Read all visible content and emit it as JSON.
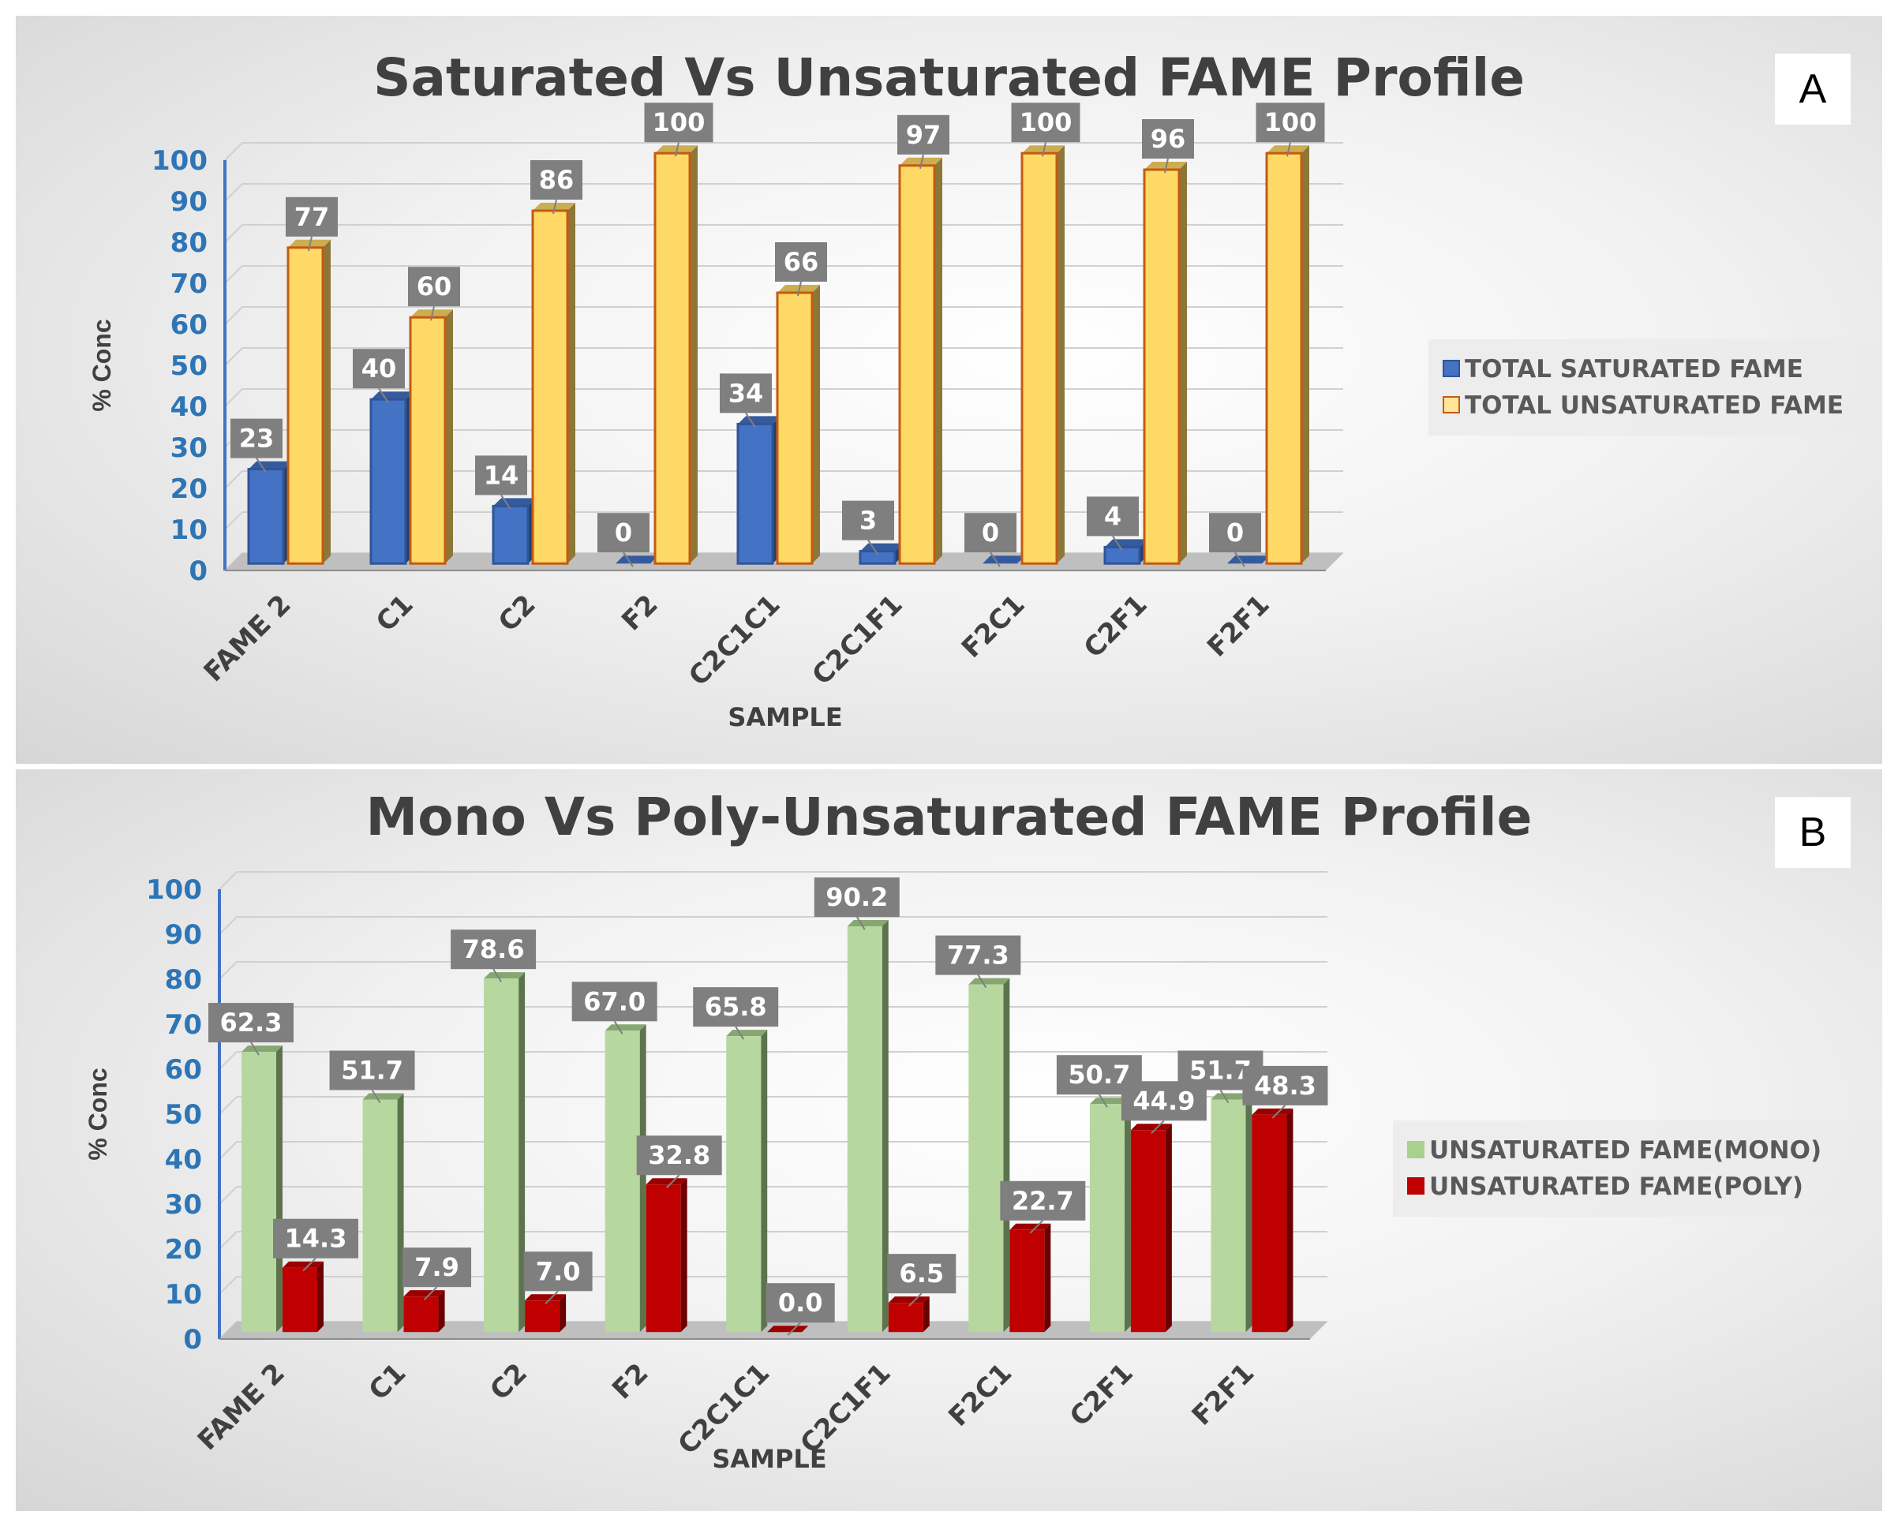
{
  "chart_data": [
    {
      "panel_label": "A",
      "type": "bar",
      "title": "Saturated Vs Unsaturated FAME Profile",
      "xlabel": "SAMPLE",
      "ylabel": "% Conc",
      "ylim": [
        0,
        100
      ],
      "yticks": [
        "0",
        "10",
        "20",
        "30",
        "40",
        "50",
        "60",
        "70",
        "80",
        "90",
        "100"
      ],
      "categories": [
        "FAME 2",
        "C1",
        "C2",
        "F2",
        "C2C1C1",
        "C2C1F1",
        "F2C1",
        "C2F1",
        "F2F1"
      ],
      "series": [
        {
          "name": "TOTAL SATURATED FAME",
          "values": [
            23,
            40,
            14,
            0,
            34,
            3,
            0,
            4,
            0
          ],
          "labels": [
            "23",
            "40",
            "14",
            "0",
            "34",
            "3",
            "0",
            "4",
            "0"
          ],
          "color": "#4472C4"
        },
        {
          "name": "TOTAL UNSATURATED FAME",
          "values": [
            77,
            60,
            86,
            100,
            66,
            97,
            100,
            96,
            100
          ],
          "labels": [
            "77",
            "60",
            "86",
            "100",
            "66",
            "97",
            "100",
            "96",
            "100"
          ],
          "color": "#FFD966"
        }
      ],
      "legend_position": "right"
    },
    {
      "panel_label": "B",
      "type": "bar",
      "title": "Mono Vs Poly-Unsaturated FAME Profile",
      "xlabel": "SAMPLE",
      "ylabel": "% Conc",
      "ylim": [
        0,
        100
      ],
      "yticks": [
        "0",
        "10",
        "20",
        "30",
        "40",
        "50",
        "60",
        "70",
        "80",
        "90",
        "100"
      ],
      "categories": [
        "FAME 2",
        "C1",
        "C2",
        "F2",
        "C2C1C1",
        "C2C1F1",
        "F2C1",
        "C2F1",
        "F2F1"
      ],
      "series": [
        {
          "name": "UNSATURATED FAME(MONO)",
          "values": [
            62.3,
            51.7,
            78.6,
            67.0,
            65.8,
            90.2,
            77.3,
            50.7,
            51.7
          ],
          "labels": [
            "62.3",
            "51.7",
            "78.6",
            "67.0",
            "65.8",
            "90.2",
            "77.3",
            "50.7",
            "51.7"
          ],
          "color": "#A9D18E"
        },
        {
          "name": "UNSATURATED FAME(POLY)",
          "values": [
            14.3,
            7.9,
            7.0,
            32.8,
            0.0,
            6.5,
            22.7,
            44.9,
            48.3
          ],
          "labels": [
            "14.3",
            "7.9",
            "7.0",
            "32.8",
            "0.0",
            "6.5",
            "22.7",
            "44.9",
            "48.3"
          ],
          "color": "#C00000"
        }
      ],
      "legend_position": "right"
    }
  ]
}
